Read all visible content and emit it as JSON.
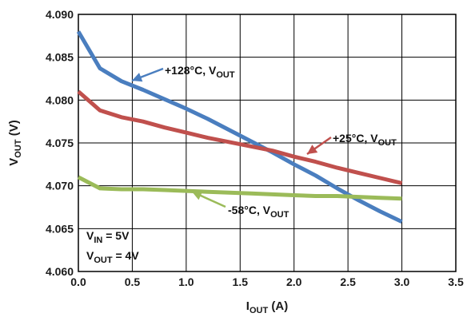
{
  "chart_data": {
    "type": "line",
    "xlim": [
      0.0,
      3.5
    ],
    "ylim": [
      4.06,
      4.09
    ],
    "x_ticks": [
      "0.0",
      "0.5",
      "1.0",
      "1.5",
      "2.0",
      "2.5",
      "3.0",
      "3.5"
    ],
    "y_ticks": [
      "4.060",
      "4.065",
      "4.070",
      "4.075",
      "4.080",
      "4.085",
      "4.090"
    ],
    "xlabel": {
      "main": "I",
      "sub": "OUT",
      "rest": " (A)"
    },
    "ylabel": {
      "main": "V",
      "sub": "OUT",
      "rest": " (V)"
    },
    "grid": true,
    "series": [
      {
        "name": "+128°C, VOUT",
        "color": "#4a7ebf",
        "x": [
          0.0,
          0.2,
          0.4,
          0.6,
          0.8,
          1.0,
          1.2,
          1.4,
          1.6,
          1.8,
          2.0,
          2.2,
          2.4,
          2.6,
          2.8,
          3.0
        ],
        "y": [
          4.088,
          4.0837,
          4.0822,
          4.0812,
          4.0801,
          4.079,
          4.0778,
          4.0765,
          4.0752,
          4.0739,
          4.0725,
          4.0712,
          4.0697,
          4.0683,
          4.067,
          4.0658
        ]
      },
      {
        "name": "+25°C, VOUT",
        "color": "#c0504d",
        "x": [
          0.0,
          0.2,
          0.4,
          0.6,
          0.8,
          1.0,
          1.2,
          1.4,
          1.6,
          1.8,
          2.0,
          2.2,
          2.4,
          2.6,
          2.8,
          3.0
        ],
        "y": [
          4.081,
          4.0788,
          4.078,
          4.0775,
          4.0768,
          4.0762,
          4.0756,
          4.0751,
          4.0746,
          4.0741,
          4.0734,
          4.0728,
          4.0721,
          4.0715,
          4.0709,
          4.0703
        ]
      },
      {
        "name": "-58°C, VOUT",
        "color": "#9bbb59",
        "x": [
          0.0,
          0.2,
          0.4,
          0.6,
          0.8,
          1.0,
          1.2,
          1.4,
          1.6,
          1.8,
          2.0,
          2.2,
          2.4,
          2.6,
          2.8,
          3.0
        ],
        "y": [
          4.071,
          4.0697,
          4.0696,
          4.0696,
          4.0695,
          4.0694,
          4.0693,
          4.0692,
          4.0691,
          4.069,
          4.0689,
          4.0688,
          4.0688,
          4.0687,
          4.0686,
          4.0685
        ]
      }
    ],
    "annotations": [
      {
        "main": "+128°C, V",
        "sub": "OUT",
        "series": 0
      },
      {
        "main": "+25°C, V",
        "sub": "OUT",
        "series": 1
      },
      {
        "main": "-58°C, V",
        "sub": "OUT",
        "series": 2
      }
    ],
    "conditions": [
      {
        "main": "V",
        "sub": "IN",
        "rest": " = 5V"
      },
      {
        "main": "V",
        "sub": "OUT",
        "rest": " = 4V"
      }
    ]
  }
}
